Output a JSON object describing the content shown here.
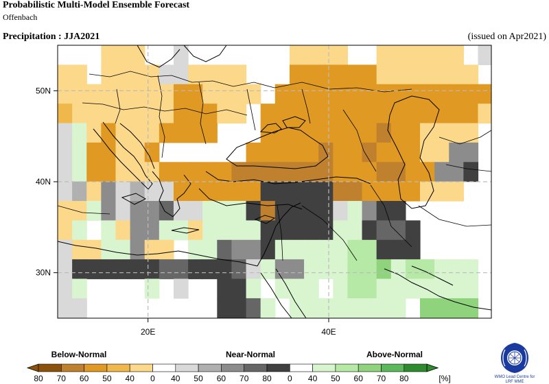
{
  "header": {
    "title": "Probabilistic Multi-Model Ensemble Forecast",
    "subtitle": "Offenbach",
    "variable": "Precipitation : JJA2021",
    "issued": "(issued on Apr2021)"
  },
  "map": {
    "lon_range": [
      10,
      58
    ],
    "lat_range": [
      25,
      55
    ],
    "x_ticks": [
      {
        "lon": 20,
        "label": "20E"
      },
      {
        "lon": 40,
        "label": "40E"
      }
    ],
    "y_ticks": [
      {
        "lat": 50,
        "label": "50N"
      },
      {
        "lat": 40,
        "label": "40N"
      },
      {
        "lat": 30,
        "label": "30N"
      }
    ],
    "grid_lines": "dashed",
    "cell_size_deg": 2.5
  },
  "legend": {
    "category_labels": [
      "Below-Normal",
      "Near-Normal",
      "Above-Normal"
    ],
    "tick_labels": [
      "80",
      "70",
      "60",
      "50",
      "40",
      "0",
      "40",
      "50",
      "60",
      "70",
      "80",
      "0",
      "40",
      "50",
      "60",
      "70",
      "80",
      "[%]"
    ],
    "colors": {
      "below": [
        "#8c510a",
        "#bf812d",
        "#e09a24",
        "#f0b84a",
        "#fbd88a"
      ],
      "white": "#ffffff",
      "near": [
        "#d9d9d9",
        "#b0b0b0",
        "#8c8c8c",
        "#666666",
        "#404040"
      ],
      "above": [
        "#d9f5d0",
        "#b6e8a6",
        "#8fd47d",
        "#5cb85a",
        "#2e8b2e"
      ]
    }
  },
  "logo": {
    "line1": "WMO Lead Centre for",
    "line2": "LRF MME"
  }
}
